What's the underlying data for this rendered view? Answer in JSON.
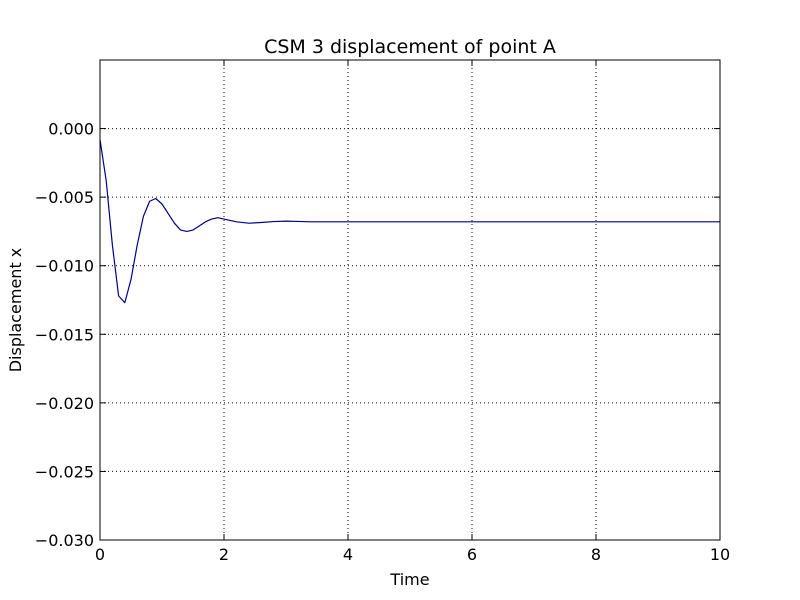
{
  "chart_data": {
    "type": "line",
    "title": "CSM 3 displacement of point A",
    "xlabel": "Time",
    "ylabel": "Displacement x",
    "xlim": [
      0,
      10
    ],
    "ylim": [
      -0.03,
      0.005
    ],
    "xticks": [
      0,
      2,
      4,
      6,
      8,
      10
    ],
    "xtick_labels": [
      "0",
      "2",
      "4",
      "6",
      "8",
      "10"
    ],
    "yticks": [
      0.0,
      -0.005,
      -0.01,
      -0.015,
      -0.02,
      -0.025,
      -0.03
    ],
    "ytick_labels": [
      "0.000",
      "−0.005",
      "−0.010",
      "−0.015",
      "−0.020",
      "−0.025",
      "−0.030"
    ],
    "grid": true,
    "line_color": "#00008b",
    "series": [
      {
        "x": [
          0,
          0.1,
          0.2,
          0.3,
          0.4,
          0.5,
          0.6,
          0.7,
          0.8,
          0.9,
          1.0,
          1.1,
          1.2,
          1.3,
          1.4,
          1.5,
          1.6,
          1.7,
          1.8,
          1.9,
          2.0,
          2.2,
          2.4,
          2.6,
          2.8,
          3.0,
          3.2,
          3.4,
          3.6,
          3.8,
          4.0,
          5.0,
          6.0,
          7.0,
          8.0,
          9.0,
          10.0
        ],
        "y": [
          -0.0008,
          -0.0038,
          -0.0085,
          -0.0122,
          -0.0127,
          -0.011,
          -0.0085,
          -0.0064,
          -0.0053,
          -0.0051,
          -0.0055,
          -0.0062,
          -0.0069,
          -0.0074,
          -0.0075,
          -0.0074,
          -0.0071,
          -0.0068,
          -0.0066,
          -0.0065,
          -0.0066,
          -0.0068,
          -0.0069,
          -0.00685,
          -0.00678,
          -0.00675,
          -0.00677,
          -0.0068,
          -0.0068,
          -0.0068,
          -0.0068,
          -0.0068,
          -0.0068,
          -0.0068,
          -0.0068,
          -0.0068,
          -0.0068
        ]
      }
    ]
  }
}
